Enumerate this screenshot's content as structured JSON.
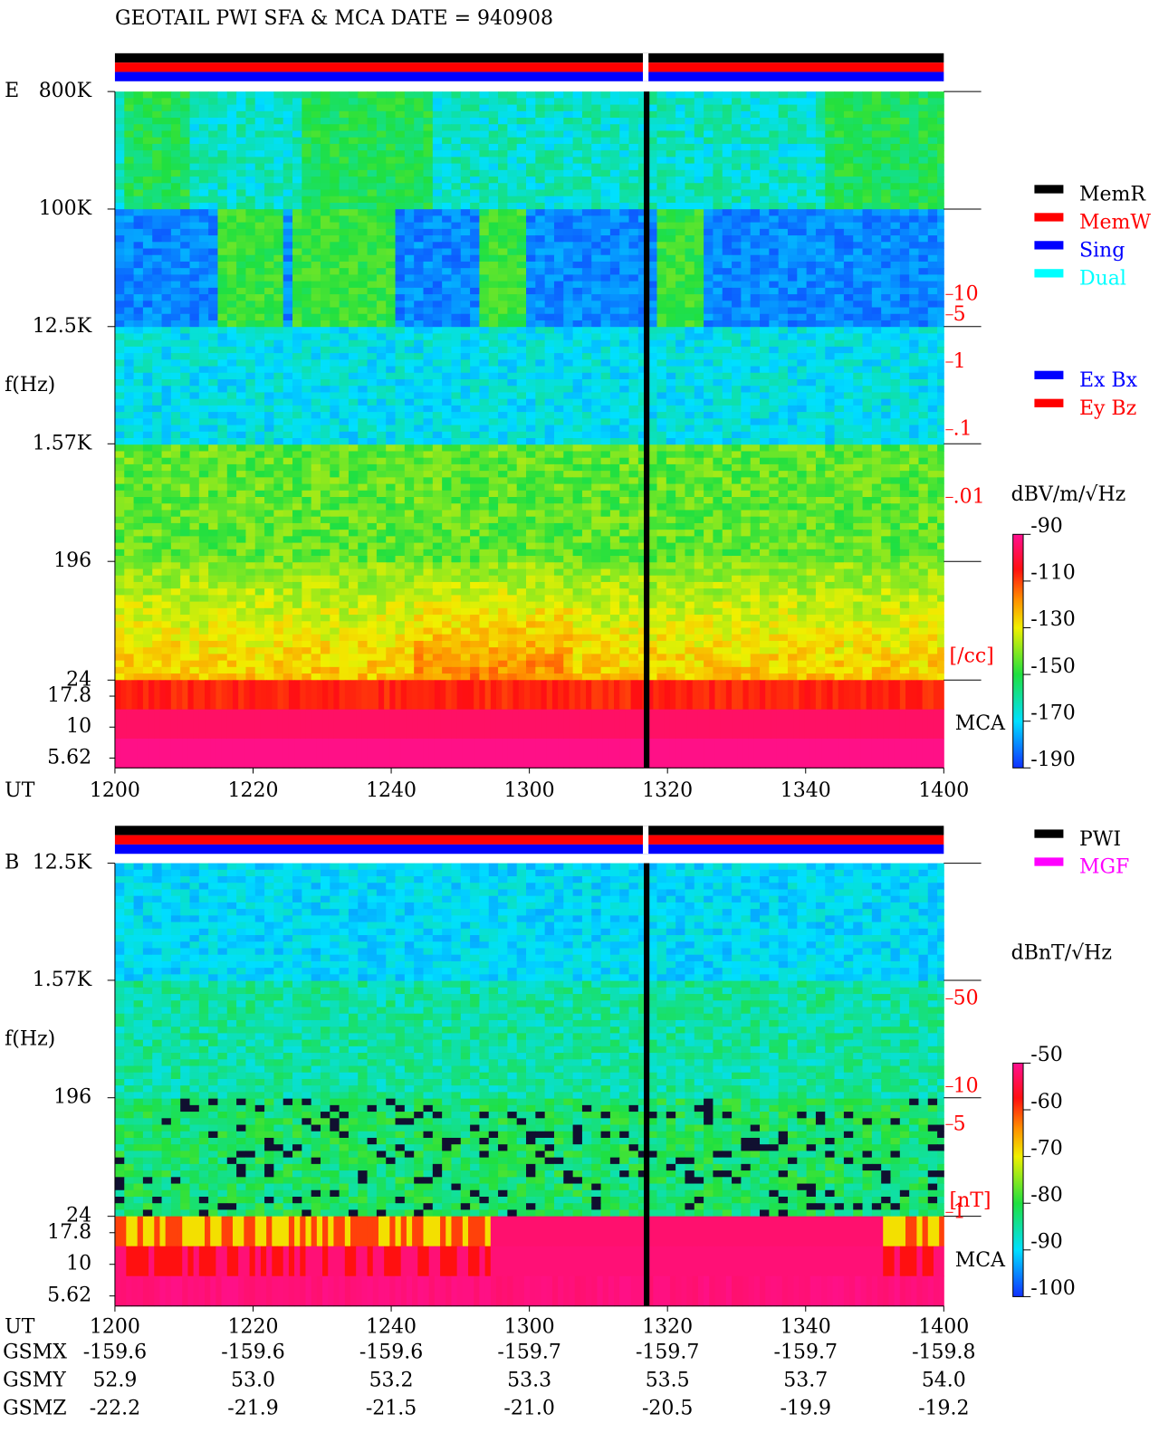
{
  "title": "GEOTAIL   PWI SFA & MCA   DATE = 940908",
  "x_axis_label": "UT",
  "chart_data": [
    {
      "type": "spectrogram",
      "panel_label": "E",
      "y_label": "f(Hz)",
      "log_y": true,
      "categories": [
        "1200",
        "1220",
        "1240",
        "1300",
        "1320",
        "1340",
        "1400"
      ],
      "ylim": [
        24,
        800000
      ],
      "yticks": [
        {
          "value": 800000,
          "label": "800K"
        },
        {
          "value": 100000,
          "label": "100K"
        },
        {
          "value": 12500,
          "label": "12.5K"
        },
        {
          "value": 1570,
          "label": "1.57K"
        },
        196,
        24
      ],
      "mca_label": "MCA",
      "mca_ylim": [
        4.68,
        24
      ],
      "mca_yticks": [
        17.8,
        10,
        5.62
      ],
      "y2_label": "[/cc]",
      "y2lim": [
        1e-06,
        10000
      ],
      "y2ticks": [
        10,
        5,
        1,
        {
          "value": 0.1,
          "label": ".1"
        },
        {
          "value": 0.01,
          "label": ".01"
        }
      ],
      "colorbar": {
        "label": "dBV/m/√Hz",
        "lim": [
          -190,
          -90
        ],
        "ticks": [
          -90,
          -110,
          -130,
          -150,
          -170,
          -190
        ]
      },
      "legend_groups": [
        [
          {
            "name": "MemR",
            "color": "#000000"
          },
          {
            "name": "MemW",
            "color": "#ff0000"
          },
          {
            "name": "Sing",
            "color": "#0000ff"
          },
          {
            "name": "Dual",
            "color": "#00ffff"
          }
        ],
        [
          {
            "name": "Ex Bx",
            "color": "#0000ff"
          },
          {
            "name": "Ey Bz",
            "color": "#ff0000"
          }
        ]
      ]
    },
    {
      "type": "spectrogram",
      "panel_label": "B",
      "y_label": "f(Hz)",
      "log_y": true,
      "categories": [
        "1200",
        "1220",
        "1240",
        "1300",
        "1320",
        "1340",
        "1400"
      ],
      "ylim": [
        24,
        12500
      ],
      "yticks": [
        {
          "value": 12500,
          "label": "12.5K"
        },
        {
          "value": 1570,
          "label": "1.57K"
        },
        196,
        24
      ],
      "mca_label": "MCA",
      "mca_ylim": [
        4.68,
        24
      ],
      "mca_yticks": [
        17.8,
        10,
        5.62
      ],
      "y2_label": "[nT]",
      "y2lim": [
        0.18,
        600
      ],
      "y2ticks": [
        50,
        10,
        5,
        1
      ],
      "colorbar": {
        "label": "dBnT/√Hz",
        "lim": [
          -100,
          -50
        ],
        "ticks": [
          -50,
          -60,
          -70,
          -80,
          -90,
          -100
        ]
      },
      "legend_groups": [
        [
          {
            "name": "PWI",
            "color": "#000000"
          },
          {
            "name": "MGF",
            "color": "#ff00ff"
          }
        ]
      ]
    }
  ],
  "orbit": {
    "rows": [
      {
        "name": "GSMX",
        "values": [
          "-159.6",
          "-159.6",
          "-159.6",
          "-159.7",
          "-159.7",
          "-159.7",
          "-159.8"
        ]
      },
      {
        "name": "GSMY",
        "values": [
          "52.9",
          "53.0",
          "53.2",
          "53.3",
          "53.5",
          "53.7",
          "54.0"
        ]
      },
      {
        "name": "GSMZ",
        "values": [
          "-22.2",
          "-21.9",
          "-21.5",
          "-21.0",
          "-20.5",
          "-19.9",
          "-19.2"
        ]
      }
    ]
  }
}
